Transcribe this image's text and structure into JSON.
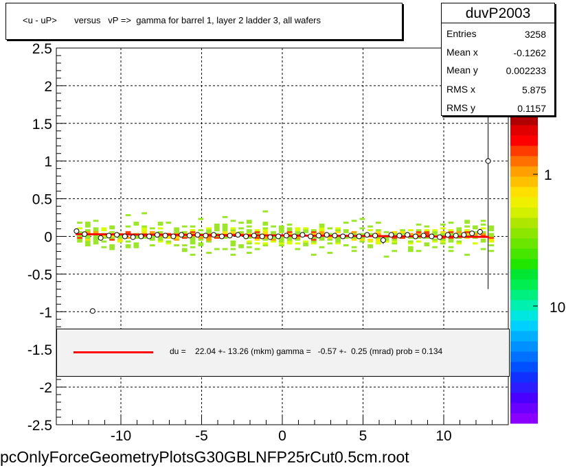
{
  "title": "<u - uP>       versus   vP =>  gamma for barrel 1, layer 2 ladder 3, all wafers",
  "filename": "pcOnlyForceGeometryPlotsG30GBLNFP25rCut0.5cm.root",
  "stats": {
    "name": "duvP2003",
    "rows": [
      {
        "key": "Entries",
        "value": "3258"
      },
      {
        "key": "Mean x",
        "value": "-0.1262"
      },
      {
        "key": "Mean y",
        "value": "0.002233"
      },
      {
        "key": "RMS x",
        "value": "5.875"
      },
      {
        "key": "RMS y",
        "value": "0.1157"
      }
    ]
  },
  "legend": {
    "text": "du =    22.04 +- 13.26 (mkm) gamma =   -0.57 +-  0.25 (mrad) prob = 0.134",
    "line_color": "#ff0000"
  },
  "colorbar_labels": [
    "1",
    "10"
  ],
  "colors": {
    "fit_line": "#ff0000",
    "grid": "#000000",
    "points": "#000000"
  },
  "chart_data": {
    "type": "scatter",
    "title": "<u - uP>       versus   vP =>  gamma for barrel 1, layer 2 ladder 3, all wafers",
    "xlabel": "",
    "ylabel": "",
    "xlim": [
      -14,
      14
    ],
    "ylim": [
      -2.5,
      2.5
    ],
    "x_ticks": [
      -10,
      -5,
      0,
      5,
      10
    ],
    "y_ticks": [
      -2.5,
      -2,
      -1.5,
      -1,
      -0.5,
      0,
      0.5,
      1,
      1.5,
      2,
      2.5
    ],
    "grid": true,
    "profile_series": {
      "name": "profile",
      "x": [
        -12.75,
        -12.25,
        -11.75,
        -11.25,
        -10.75,
        -10.25,
        -9.75,
        -9.25,
        -8.75,
        -8.25,
        -7.75,
        -7.25,
        -6.75,
        -6.25,
        -5.75,
        -5.25,
        -4.75,
        -4.25,
        -3.75,
        -3.25,
        -2.75,
        -2.25,
        -1.75,
        -1.25,
        -0.75,
        -0.25,
        0.25,
        0.75,
        1.25,
        1.75,
        2.25,
        2.75,
        3.25,
        3.75,
        4.25,
        4.75,
        5.25,
        5.75,
        6.25,
        6.75,
        7.25,
        7.75,
        8.25,
        8.75,
        9.25,
        9.75,
        10.25,
        10.75,
        11.25,
        11.75,
        12.25,
        12.75
      ],
      "y": [
        0.07,
        0.03,
        -0.99,
        -0.02,
        0.01,
        0.02,
        0.0,
        -0.01,
        0.0,
        0.0,
        0.02,
        0.01,
        0.0,
        0.02,
        0.01,
        0.02,
        0.01,
        0.02,
        0.0,
        0.01,
        0.02,
        0.0,
        0.01,
        0.0,
        -0.01,
        0.0,
        0.01,
        0.0,
        0.02,
        0.0,
        0.01,
        0.02,
        0.01,
        0.0,
        0.01,
        0.0,
        0.02,
        0.01,
        -0.05,
        0.02,
        0.01,
        0.02,
        0.0,
        0.01,
        0.0,
        -0.01,
        0.02,
        0.01,
        0.02,
        0.04,
        0.06,
        1.0
      ],
      "y_err": [
        0.03,
        0.02,
        0.0,
        0.03,
        0.02,
        0.02,
        0.02,
        0.02,
        0.02,
        0.02,
        0.02,
        0.02,
        0.02,
        0.02,
        0.02,
        0.02,
        0.02,
        0.02,
        0.02,
        0.02,
        0.02,
        0.02,
        0.02,
        0.02,
        0.02,
        0.02,
        0.02,
        0.02,
        0.02,
        0.02,
        0.02,
        0.02,
        0.02,
        0.02,
        0.02,
        0.02,
        0.02,
        0.02,
        0.05,
        0.02,
        0.02,
        0.02,
        0.02,
        0.02,
        0.02,
        0.02,
        0.02,
        0.02,
        0.03,
        0.03,
        0.04,
        1.7
      ]
    },
    "fit_line": {
      "x": [
        -12.8,
        12.8
      ],
      "y": [
        0.0295,
        -0.0065
      ]
    },
    "density_band": {
      "x_range": [
        -12.8,
        12.8
      ],
      "y_range": [
        -0.5,
        0.5
      ],
      "peak_y": 0.0
    }
  }
}
